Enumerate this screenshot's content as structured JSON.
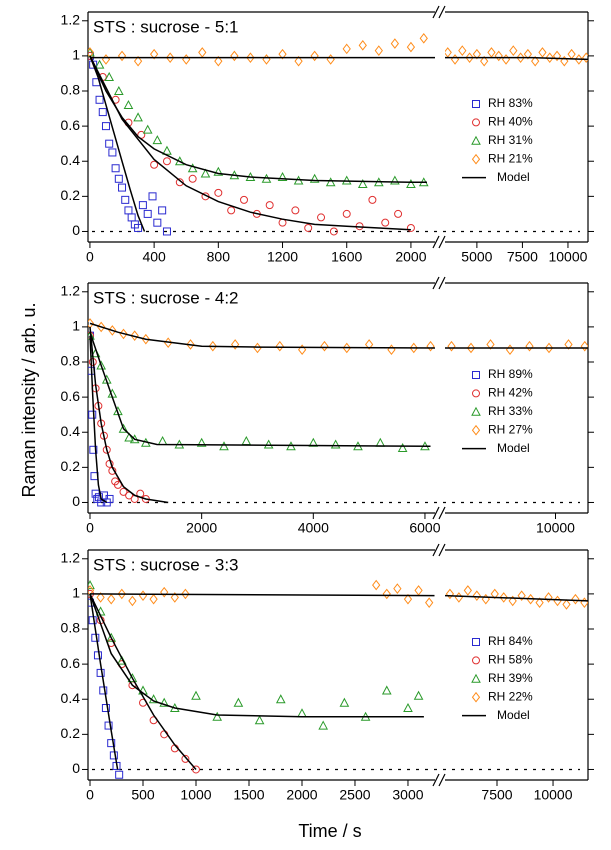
{
  "ylabel": "Raman intensity / arb. u.",
  "xlabel": "Time / s",
  "chart_data": [
    {
      "type": "scatter",
      "title": "STS : sucrose - 5:1",
      "ylim": [
        -0.06,
        1.25
      ],
      "yticks": [
        0,
        0.2,
        0.4,
        0.6,
        0.8,
        1,
        1.2
      ],
      "xaxes": [
        {
          "xlim": [
            -12,
            2150
          ],
          "xticks": [
            0,
            400,
            800,
            1200,
            1600,
            2000
          ]
        },
        {
          "xlim": [
            3250,
            11100
          ],
          "xticks": [
            5000,
            7500,
            10000
          ]
        }
      ],
      "series": [
        {
          "name": "RH 83%",
          "color": "#2a2ad0",
          "marker": "square",
          "x": [
            0,
            20,
            40,
            60,
            80,
            100,
            120,
            140,
            160,
            180,
            200,
            220,
            240,
            260,
            280,
            300,
            330,
            360,
            390,
            420,
            450,
            480
          ],
          "values": [
            1.0,
            0.95,
            0.85,
            0.75,
            0.68,
            0.6,
            0.5,
            0.45,
            0.36,
            0.3,
            0.25,
            0.18,
            0.12,
            0.08,
            0.04,
            0.02,
            0.15,
            0.1,
            0.2,
            0.05,
            0.12,
            0.0
          ]
        },
        {
          "name": "RH 40%",
          "color": "#e03030",
          "marker": "circle",
          "x": [
            0,
            80,
            160,
            240,
            320,
            400,
            480,
            560,
            640,
            720,
            800,
            880,
            960,
            1040,
            1120,
            1200,
            1280,
            1360,
            1440,
            1520,
            1600,
            1680,
            1760,
            1840,
            1920,
            2000
          ],
          "values": [
            1.0,
            0.88,
            0.75,
            0.62,
            0.55,
            0.38,
            0.4,
            0.28,
            0.3,
            0.2,
            0.22,
            0.12,
            0.18,
            0.1,
            0.15,
            0.05,
            0.12,
            0.02,
            0.08,
            0.0,
            0.1,
            0.03,
            0.18,
            0.05,
            0.1,
            0.02
          ]
        },
        {
          "name": "RH 31%",
          "color": "#2a9a2a",
          "marker": "triangle",
          "x": [
            0,
            60,
            120,
            180,
            240,
            300,
            360,
            420,
            480,
            560,
            640,
            720,
            800,
            900,
            1000,
            1100,
            1200,
            1300,
            1400,
            1500,
            1600,
            1700,
            1800,
            1900,
            2000,
            2080
          ],
          "values": [
            1.02,
            0.95,
            0.88,
            0.8,
            0.72,
            0.65,
            0.58,
            0.52,
            0.46,
            0.4,
            0.36,
            0.33,
            0.34,
            0.32,
            0.31,
            0.3,
            0.31,
            0.29,
            0.3,
            0.28,
            0.29,
            0.27,
            0.28,
            0.29,
            0.27,
            0.28
          ]
        },
        {
          "name": "RH 21%",
          "color": "#ff8c1a",
          "marker": "diamond",
          "x": [
            0,
            100,
            200,
            300,
            400,
            500,
            600,
            700,
            800,
            900,
            1000,
            1100,
            1200,
            1300,
            1400,
            1500,
            1600,
            1700,
            1800,
            1900,
            2000,
            2080,
            3400,
            3800,
            4200,
            4600,
            5000,
            5400,
            5800,
            6200,
            6600,
            7000,
            7400,
            7800,
            8200,
            8600,
            9000,
            9400,
            9800,
            10200,
            10600,
            11000
          ],
          "values": [
            1.02,
            0.98,
            1.0,
            0.97,
            1.01,
            0.99,
            0.98,
            1.02,
            0.97,
            1.0,
            0.99,
            0.98,
            1.01,
            0.97,
            1.0,
            0.98,
            1.04,
            1.06,
            1.03,
            1.07,
            1.05,
            1.1,
            1.02,
            0.98,
            1.03,
            0.99,
            1.01,
            0.97,
            1.02,
            1.0,
            0.98,
            1.03,
            0.99,
            1.01,
            0.97,
            1.02,
            0.99,
            1.0,
            0.97,
            1.01,
            0.98,
            0.99
          ]
        }
      ],
      "model": {
        "name": "Model",
        "color": "#000000",
        "lines": [
          {
            "x": [
              0,
              50,
              100,
              150,
              200,
              250,
              300,
              340
            ],
            "values": [
              1,
              0.88,
              0.72,
              0.56,
              0.4,
              0.24,
              0.09,
              0
            ]
          },
          {
            "x": [
              0,
              200,
              400,
              600,
              800,
              1000,
              1200,
              1400,
              1600,
              1800,
              2000
            ],
            "values": [
              1,
              0.64,
              0.41,
              0.26,
              0.17,
              0.11,
              0.07,
              0.04,
              0.03,
              0.02,
              0.01
            ]
          },
          {
            "x": [
              0,
              100,
              200,
              300,
              400,
              600,
              800,
              1000,
              1400,
              2000,
              2100
            ],
            "values": [
              1,
              0.8,
              0.65,
              0.54,
              0.47,
              0.38,
              0.33,
              0.31,
              0.29,
              0.28,
              0.28
            ]
          },
          {
            "x": [
              0,
              2150
            ],
            "values": [
              0.99,
              0.99
            ]
          },
          {
            "x": [
              3250,
              8000,
              11100
            ],
            "values": [
              0.99,
              0.99,
              0.98
            ]
          }
        ]
      }
    },
    {
      "type": "scatter",
      "title": "STS : sucrose - 4:2",
      "ylim": [
        -0.06,
        1.25
      ],
      "yticks": [
        0,
        0.2,
        0.4,
        0.6,
        0.8,
        1,
        1.2
      ],
      "xaxes": [
        {
          "xlim": [
            -36,
            6180
          ],
          "xticks": [
            0,
            2000,
            4000,
            6000
          ]
        },
        {
          "xlim": [
            8300,
            10500
          ],
          "xticks": [
            10000
          ]
        }
      ],
      "series": [
        {
          "name": "RH 89%",
          "color": "#2a2ad0",
          "marker": "square",
          "x": [
            0,
            20,
            40,
            60,
            80,
            100,
            130,
            160,
            200,
            250,
            300,
            350
          ],
          "values": [
            0.95,
            0.75,
            0.5,
            0.3,
            0.15,
            0.05,
            0.02,
            0.03,
            0,
            0.04,
            0.0,
            0.02
          ]
        },
        {
          "name": "RH 42%",
          "color": "#e03030",
          "marker": "circle",
          "x": [
            0,
            50,
            100,
            150,
            200,
            250,
            300,
            350,
            400,
            450,
            500,
            600,
            700,
            800,
            900,
            1000
          ],
          "values": [
            0.95,
            0.8,
            0.65,
            0.55,
            0.45,
            0.38,
            0.3,
            0.22,
            0.18,
            0.12,
            0.1,
            0.06,
            0.04,
            0.02,
            0.05,
            0.02
          ]
        },
        {
          "name": "RH 33%",
          "color": "#2a9a2a",
          "marker": "triangle",
          "x": [
            0,
            100,
            200,
            300,
            400,
            500,
            600,
            700,
            800,
            1000,
            1300,
            1600,
            2000,
            2400,
            2800,
            3200,
            3600,
            4000,
            4400,
            4800,
            5200,
            5600,
            6000
          ],
          "values": [
            0.95,
            0.85,
            0.78,
            0.7,
            0.62,
            0.52,
            0.42,
            0.37,
            0.36,
            0.34,
            0.35,
            0.33,
            0.34,
            0.32,
            0.35,
            0.33,
            0.32,
            0.34,
            0.33,
            0.32,
            0.34,
            0.31,
            0.32
          ]
        },
        {
          "name": "RH 27%",
          "color": "#ff8c1a",
          "marker": "diamond",
          "x": [
            0,
            200,
            400,
            600,
            800,
            1000,
            1400,
            1800,
            2200,
            2600,
            3000,
            3400,
            3800,
            4200,
            4600,
            5000,
            5400,
            5800,
            6100,
            8400,
            8700,
            9000,
            9300,
            9600,
            9900,
            10200,
            10450
          ],
          "values": [
            1.02,
            1.0,
            0.98,
            0.96,
            0.95,
            0.93,
            0.91,
            0.9,
            0.89,
            0.9,
            0.88,
            0.89,
            0.87,
            0.89,
            0.88,
            0.9,
            0.87,
            0.88,
            0.89,
            0.89,
            0.88,
            0.9,
            0.87,
            0.89,
            0.88,
            0.9,
            0.89
          ]
        }
      ],
      "model": {
        "name": "Model",
        "color": "#000000",
        "lines": [
          {
            "x": [
              0,
              50,
              100,
              150,
              200,
              300
            ],
            "values": [
              0.95,
              0.6,
              0.3,
              0.1,
              0.02,
              0
            ]
          },
          {
            "x": [
              0,
              100,
              200,
              300,
              400,
              600,
              800,
              1000,
              1400
            ],
            "values": [
              1,
              0.67,
              0.45,
              0.3,
              0.2,
              0.09,
              0.04,
              0.02,
              0
            ]
          },
          {
            "x": [
              0,
              200,
              400,
              600,
              800,
              1200,
              6100
            ],
            "values": [
              0.97,
              0.78,
              0.6,
              0.42,
              0.36,
              0.33,
              0.32
            ]
          },
          {
            "x": [
              0,
              500,
              1000,
              1500,
              2000,
              3000,
              6180
            ],
            "values": [
              1.02,
              0.97,
              0.93,
              0.91,
              0.89,
              0.885,
              0.88
            ]
          },
          {
            "x": [
              8300,
              10500
            ],
            "values": [
              0.88,
              0.88
            ]
          }
        ]
      }
    },
    {
      "type": "scatter",
      "title": "STS : sucrose - 3:3",
      "ylim": [
        -0.06,
        1.25
      ],
      "yticks": [
        0,
        0.2,
        0.4,
        0.6,
        0.8,
        1,
        1.2
      ],
      "xaxes": [
        {
          "xlim": [
            -19,
            3255
          ],
          "xticks": [
            0,
            500,
            1000,
            1500,
            2000,
            2500,
            3000
          ]
        },
        {
          "xlim": [
            5180,
            11560
          ],
          "xticks": [
            7500,
            10000
          ]
        }
      ],
      "series": [
        {
          "name": "RH 84%",
          "color": "#2a2ad0",
          "marker": "square",
          "x": [
            0,
            25,
            50,
            75,
            100,
            125,
            150,
            175,
            200,
            225,
            250,
            275
          ],
          "values": [
            0.95,
            0.85,
            0.75,
            0.65,
            0.55,
            0.45,
            0.35,
            0.25,
            0.15,
            0.08,
            0.02,
            -0.03
          ]
        },
        {
          "name": "RH 58%",
          "color": "#e03030",
          "marker": "circle",
          "x": [
            0,
            100,
            200,
            300,
            400,
            500,
            600,
            700,
            800,
            900,
            1000
          ],
          "values": [
            1,
            0.85,
            0.72,
            0.6,
            0.48,
            0.38,
            0.28,
            0.2,
            0.12,
            0.06,
            0.0
          ]
        },
        {
          "name": "RH 39%",
          "color": "#2a9a2a",
          "marker": "triangle",
          "x": [
            0,
            100,
            200,
            300,
            400,
            500,
            600,
            700,
            800,
            1000,
            1200,
            1400,
            1600,
            1800,
            2000,
            2200,
            2400,
            2600,
            2800,
            3000,
            3100
          ],
          "values": [
            1.05,
            0.9,
            0.75,
            0.62,
            0.52,
            0.45,
            0.4,
            0.38,
            0.35,
            0.42,
            0.3,
            0.38,
            0.28,
            0.4,
            0.32,
            0.25,
            0.38,
            0.3,
            0.45,
            0.35,
            0.42
          ]
        },
        {
          "name": "RH 22%",
          "color": "#ff8c1a",
          "marker": "diamond",
          "x": [
            0,
            100,
            200,
            300,
            400,
            500,
            600,
            700,
            800,
            900,
            2700,
            2800,
            2900,
            3000,
            3100,
            3200,
            5400,
            5800,
            6200,
            6600,
            7000,
            7400,
            7800,
            8200,
            8600,
            9000,
            9400,
            9800,
            10200,
            10600,
            11000,
            11400
          ],
          "values": [
            1.02,
            0.98,
            0.97,
            1.0,
            0.96,
            0.99,
            0.97,
            1.01,
            0.98,
            1.0,
            1.05,
            1.0,
            1.03,
            0.97,
            1.02,
            0.95,
            1.0,
            0.98,
            1.02,
            0.99,
            0.97,
            1.0,
            0.98,
            0.96,
            0.99,
            0.97,
            0.95,
            0.98,
            0.96,
            0.94,
            0.97,
            0.95
          ]
        }
      ],
      "model": {
        "name": "Model",
        "color": "#000000",
        "lines": [
          {
            "x": [
              0,
              100,
              200,
              260
            ],
            "values": [
              1,
              0.6,
              0.22,
              0
            ]
          },
          {
            "x": [
              0,
              200,
              400,
              600,
              800,
              1000
            ],
            "values": [
              1,
              0.75,
              0.52,
              0.31,
              0.14,
              0
            ]
          },
          {
            "x": [
              0,
              200,
              400,
              600,
              800,
              1200,
              2000,
              3150
            ],
            "values": [
              1,
              0.66,
              0.48,
              0.39,
              0.35,
              0.31,
              0.3,
              0.3
            ]
          },
          {
            "x": [
              0,
              3250
            ],
            "values": [
              1.0,
              0.99
            ]
          },
          {
            "x": [
              5180,
              11560
            ],
            "values": [
              0.99,
              0.96
            ]
          }
        ]
      }
    }
  ]
}
